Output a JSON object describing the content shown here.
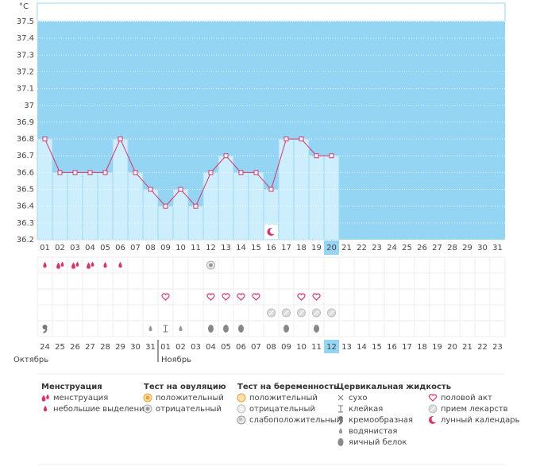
{
  "chart_data": {
    "type": "line",
    "y_unit": "°C",
    "categories": [
      "01",
      "02",
      "03",
      "04",
      "05",
      "06",
      "07",
      "08",
      "09",
      "10",
      "11",
      "12",
      "13",
      "14",
      "15",
      "16",
      "17",
      "18",
      "19",
      "20",
      "21",
      "22",
      "23",
      "24",
      "25",
      "26",
      "27",
      "28",
      "29",
      "30",
      "31"
    ],
    "values": [
      36.8,
      36.6,
      36.6,
      36.6,
      36.6,
      36.8,
      36.6,
      36.5,
      36.4,
      36.5,
      36.4,
      36.6,
      36.7,
      36.6,
      36.6,
      36.5,
      36.8,
      36.8,
      36.7,
      36.7,
      null,
      null,
      null,
      null,
      null,
      null,
      null,
      null,
      null,
      null,
      null
    ],
    "selected": "20",
    "color": "#e0306a",
    "bar_color": "#cdeefc",
    "background": "#93d5f2",
    "ylim": [
      36.2,
      37.5
    ],
    "yticks": [
      36.2,
      36.3,
      36.4,
      36.5,
      36.6,
      36.7,
      36.8,
      36.9,
      37,
      37.1,
      37.2,
      37.3,
      37.4,
      37.5
    ],
    "chart_markers": [
      {
        "day": "16",
        "symbol": "moon"
      }
    ]
  },
  "symbol_rows": [
    [
      {
        "day": "01",
        "symbol": "drop"
      },
      {
        "day": "02",
        "symbol": "drops"
      },
      {
        "day": "03",
        "symbol": "drops"
      },
      {
        "day": "04",
        "symbol": "drops"
      },
      {
        "day": "05",
        "symbol": "drop"
      },
      {
        "day": "06",
        "symbol": "drop"
      },
      {
        "day": "12",
        "symbol": "ovu-neg"
      }
    ],
    [],
    [
      {
        "day": "09",
        "symbol": "heart"
      },
      {
        "day": "12",
        "symbol": "heart"
      },
      {
        "day": "13",
        "symbol": "heart"
      },
      {
        "day": "14",
        "symbol": "heart"
      },
      {
        "day": "15",
        "symbol": "heart"
      },
      {
        "day": "18",
        "symbol": "heart"
      },
      {
        "day": "19",
        "symbol": "heart"
      }
    ],
    [
      {
        "day": "16",
        "symbol": "pill"
      },
      {
        "day": "17",
        "symbol": "pill"
      },
      {
        "day": "18",
        "symbol": "pill"
      },
      {
        "day": "19",
        "symbol": "pill"
      },
      {
        "day": "20",
        "symbol": "pill"
      }
    ],
    [
      {
        "day": "01",
        "symbol": "creamy"
      },
      {
        "day": "08",
        "symbol": "watery"
      },
      {
        "day": "09",
        "symbol": "sticky"
      },
      {
        "day": "10",
        "symbol": "watery"
      },
      {
        "day": "12",
        "symbol": "eggwhite"
      },
      {
        "day": "13",
        "symbol": "eggwhite"
      },
      {
        "day": "14",
        "symbol": "eggwhite"
      },
      {
        "day": "17",
        "symbol": "eggwhite"
      },
      {
        "day": "19",
        "symbol": "eggwhite"
      }
    ]
  ],
  "dates": [
    {
      "text": "24"
    },
    {
      "text": "25"
    },
    {
      "text": "26"
    },
    {
      "text": "27"
    },
    {
      "text": "28"
    },
    {
      "text": "29",
      "color": "#d81b60"
    },
    {
      "text": "30",
      "color": "#d81b60"
    },
    {
      "text": "31"
    },
    {
      "text": "01"
    },
    {
      "text": "02"
    },
    {
      "text": "03"
    },
    {
      "text": "04"
    },
    {
      "text": "05",
      "color": "#d81b60"
    },
    {
      "text": "06",
      "color": "#d81b60"
    },
    {
      "text": "07"
    },
    {
      "text": "08"
    },
    {
      "text": "09"
    },
    {
      "text": "10"
    },
    {
      "text": "11"
    },
    {
      "text": "12",
      "selected": true
    },
    {
      "text": "13",
      "color": "#d81b60"
    },
    {
      "text": "14"
    },
    {
      "text": "15"
    },
    {
      "text": "16"
    },
    {
      "text": "17"
    },
    {
      "text": "18"
    },
    {
      "text": "19",
      "color": "#d81b60"
    },
    {
      "text": "20",
      "color": "#d81b60"
    },
    {
      "text": "21"
    },
    {
      "text": "22"
    },
    {
      "text": "23"
    }
  ],
  "months": [
    "Октябрь",
    "Ноябрь"
  ],
  "legend": [
    {
      "title": "Менструация",
      "items": [
        {
          "text": "менструация",
          "symbol": "drops"
        },
        {
          "text": "небольшие выделения",
          "symbol": "drop"
        }
      ]
    },
    {
      "title": "Тест на овуляцию",
      "items": [
        {
          "text": "положительный",
          "symbol": "ovu-pos"
        },
        {
          "text": "отрицательный",
          "symbol": "ovu-neg"
        }
      ]
    },
    {
      "title": "Тест на беременность",
      "items": [
        {
          "text": "положительный",
          "symbol": "preg-pos"
        },
        {
          "text": "отрицательный",
          "symbol": "preg-neg"
        },
        {
          "text": "слабоположительный",
          "symbol": "preg-weak"
        }
      ]
    },
    {
      "title": "Цервикальная жидкость",
      "items": [
        {
          "text": "сухо",
          "symbol": "dry"
        },
        {
          "text": "клейкая",
          "symbol": "sticky"
        },
        {
          "text": "кремообразная",
          "symbol": "creamy"
        },
        {
          "text": "водянистая",
          "symbol": "watery"
        },
        {
          "text": "яичный белок",
          "symbol": "eggwhite"
        }
      ]
    },
    {
      "items": [
        {
          "text": "половой акт",
          "symbol": "heart"
        },
        {
          "text": "прием лекарств",
          "symbol": "pill"
        },
        {
          "text": "лунный календарь",
          "symbol": "moon"
        }
      ]
    }
  ]
}
